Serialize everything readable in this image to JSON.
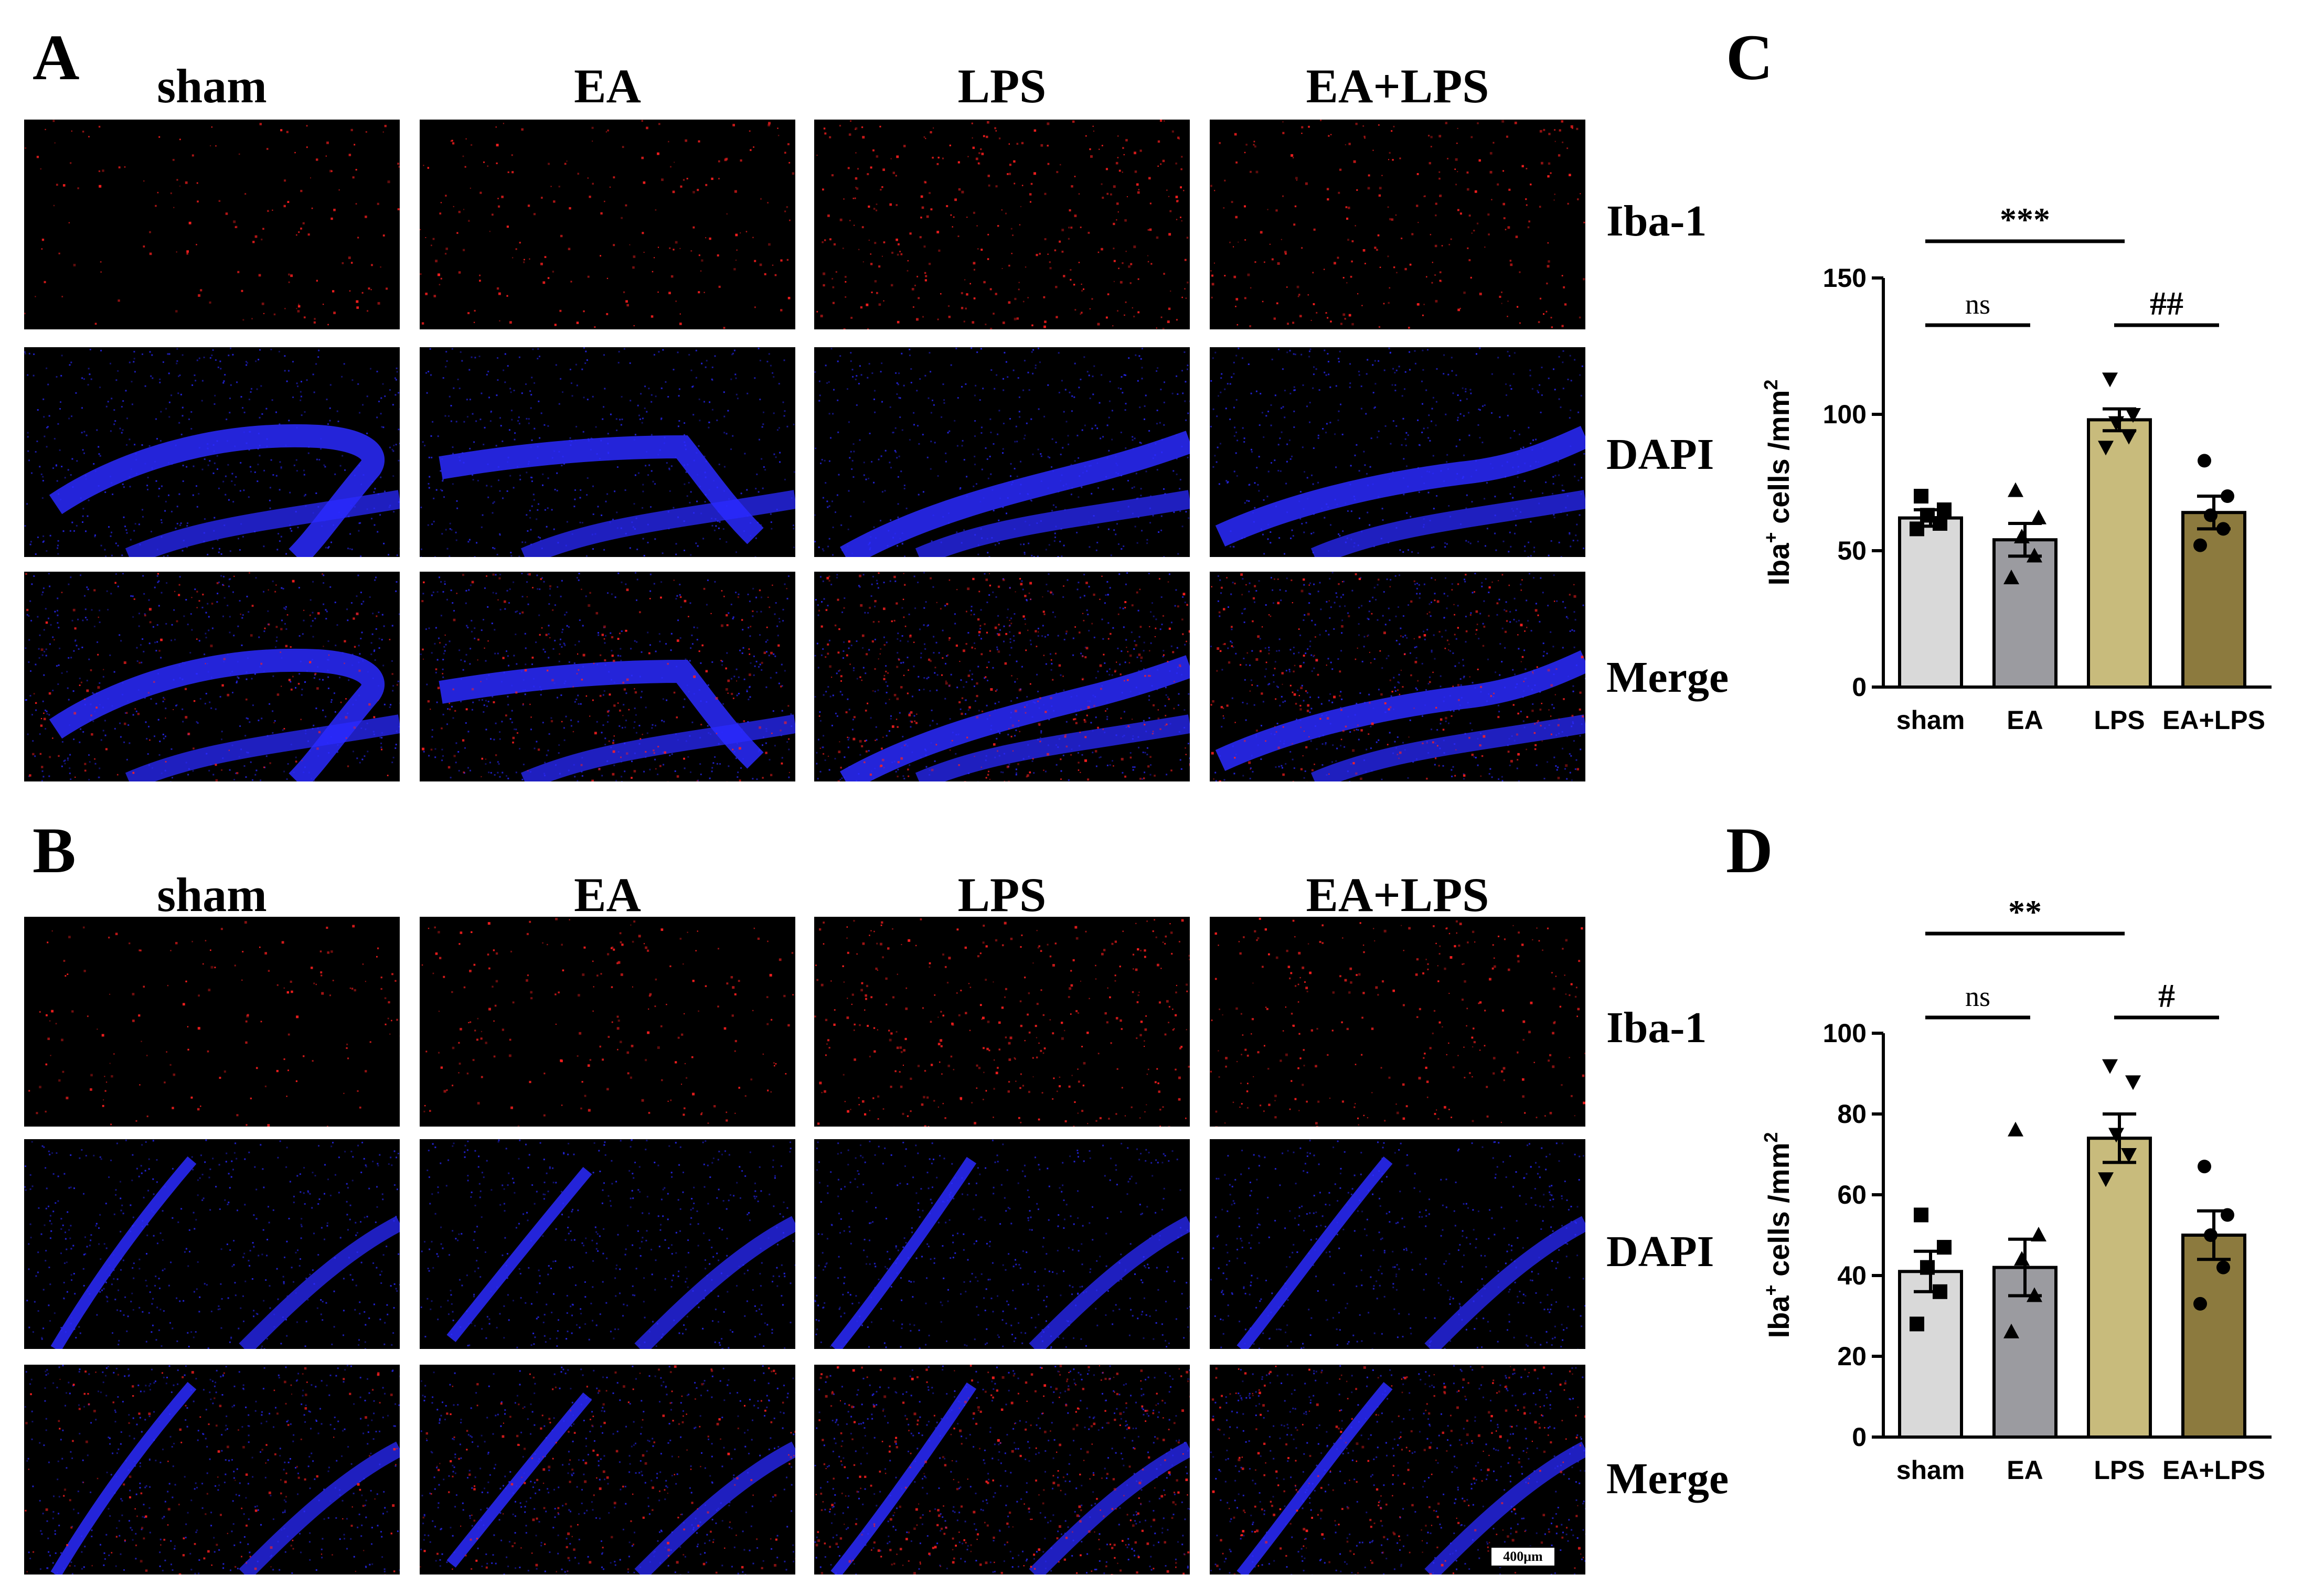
{
  "panels": {
    "A": {
      "letter": "A",
      "columns": [
        "sham",
        "EA",
        "LPS",
        "EA+LPS"
      ],
      "rows": [
        "Iba-1",
        "DAPI",
        "Merge"
      ]
    },
    "B": {
      "letter": "B",
      "columns": [
        "sham",
        "EA",
        "LPS",
        "EA+LPS"
      ],
      "rows": [
        "Iba-1",
        "DAPI",
        "Merge"
      ],
      "scale_bar": "400μm"
    },
    "C": {
      "letter": "C"
    },
    "D": {
      "letter": "D"
    }
  },
  "colors": {
    "sham": "#d9d9d9",
    "EA": "#9b9ba0",
    "LPS": "#c8bb7c",
    "EA+LPS": "#8c7a3e",
    "iba": "#ff2020",
    "dapi": "#2a2aff"
  },
  "chart_data": [
    {
      "panel": "C",
      "type": "bar",
      "categories": [
        "sham",
        "EA",
        "LPS",
        "EA+LPS"
      ],
      "values": [
        62,
        54,
        98,
        64
      ],
      "sem": [
        3,
        6,
        4,
        6
      ],
      "points": [
        [
          58,
          60,
          63,
          65,
          70
        ],
        [
          40,
          48,
          55,
          62,
          72
        ],
        [
          88,
          92,
          97,
          100,
          113
        ],
        [
          52,
          58,
          63,
          70,
          83
        ]
      ],
      "markers": [
        "square",
        "triangle",
        "triangle-down",
        "circle"
      ],
      "ylabel_main": "Iba",
      "ylabel_sup1": "+",
      "ylabel_mid": " cells /mm",
      "ylabel_sup2": "2",
      "ylim": [
        0,
        150
      ],
      "yticks": [
        "0",
        "50",
        "100",
        "150"
      ],
      "annotations": [
        {
          "text": "***",
          "from": "sham",
          "to": "LPS",
          "level": "top"
        },
        {
          "text": "ns",
          "from": "sham",
          "to": "EA",
          "level": "low"
        },
        {
          "text": "##",
          "from": "LPS",
          "to": "EA+LPS",
          "level": "low"
        }
      ]
    },
    {
      "panel": "D",
      "type": "bar",
      "categories": [
        "sham",
        "EA",
        "LPS",
        "EA+LPS"
      ],
      "values": [
        41,
        42,
        74,
        50
      ],
      "sem": [
        5,
        7,
        6,
        6
      ],
      "points": [
        [
          28,
          36,
          42,
          47,
          55
        ],
        [
          26,
          35,
          44,
          50,
          76
        ],
        [
          64,
          70,
          75,
          88,
          92
        ],
        [
          33,
          42,
          50,
          55,
          67
        ]
      ],
      "markers": [
        "square",
        "triangle",
        "triangle-down",
        "circle"
      ],
      "ylabel_main": "Iba",
      "ylabel_sup1": "+",
      "ylabel_mid": " cells /mm",
      "ylabel_sup2": "2",
      "ylim": [
        0,
        100
      ],
      "yticks": [
        "0",
        "20",
        "40",
        "60",
        "80",
        "100"
      ],
      "annotations": [
        {
          "text": "**",
          "from": "sham",
          "to": "LPS",
          "level": "top"
        },
        {
          "text": "ns",
          "from": "sham",
          "to": "EA",
          "level": "low"
        },
        {
          "text": "#",
          "from": "LPS",
          "to": "EA+LPS",
          "level": "low"
        }
      ]
    }
  ]
}
